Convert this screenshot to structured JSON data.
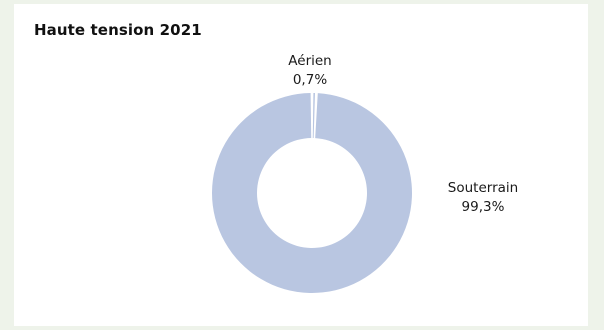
{
  "chart_data": {
    "type": "pie",
    "title": "Haute tension  2021",
    "donut": true,
    "slices": [
      {
        "label": "Aérien",
        "value": 0.7,
        "value_label": "0,7%",
        "color": "#b9c6e1"
      },
      {
        "label": "Souterrain",
        "value": 99.3,
        "value_label": "99,3%",
        "color": "#b9c6e1"
      }
    ]
  }
}
